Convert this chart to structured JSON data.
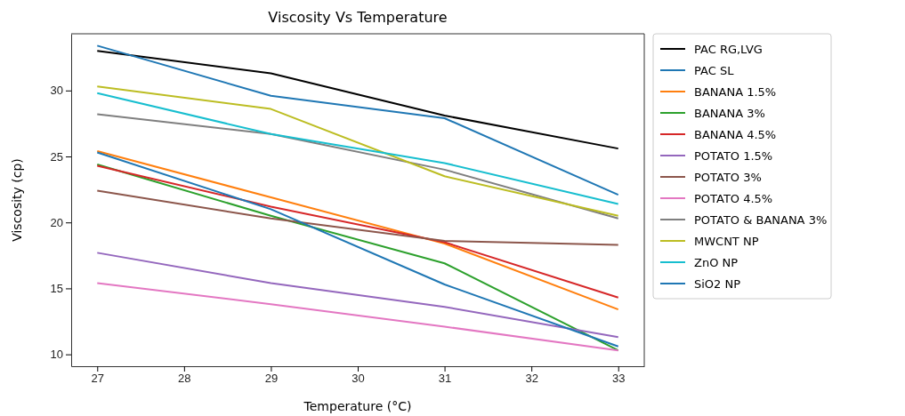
{
  "chart_data": {
    "type": "line",
    "title": "Viscosity Vs Temperature",
    "xlabel": "Temperature (°C)",
    "ylabel": "Viscosity (cp)",
    "x": [
      27,
      29,
      31,
      33
    ],
    "xlim": [
      26.7,
      33.3
    ],
    "xticks": [
      27,
      28,
      29,
      30,
      31,
      32,
      33
    ],
    "ylim": [
      9.1,
      34.3
    ],
    "yticks": [
      10,
      15,
      20,
      25,
      30
    ],
    "grid": false,
    "legend": "top right",
    "line_style": "solid",
    "series": [
      {
        "name": "PAC RG,LVG",
        "color": "#000000",
        "values": [
          33.0,
          31.3,
          28.1,
          25.6
        ]
      },
      {
        "name": "PAC SL",
        "color": "#1f77b4",
        "values": [
          33.4,
          29.6,
          27.9,
          22.1
        ]
      },
      {
        "name": "BANANA 1.5%",
        "color": "#ff7f0e",
        "values": [
          25.4,
          21.9,
          18.4,
          13.4
        ]
      },
      {
        "name": "BANANA 3%",
        "color": "#2ca02c",
        "values": [
          24.4,
          20.5,
          16.9,
          10.3
        ]
      },
      {
        "name": "BANANA 4.5%",
        "color": "#d62728",
        "values": [
          24.3,
          21.2,
          18.5,
          14.3
        ]
      },
      {
        "name": "POTATO 1.5%",
        "color": "#9467bd",
        "values": [
          17.7,
          15.4,
          13.6,
          11.3
        ]
      },
      {
        "name": "POTATO 3%",
        "color": "#8c564b",
        "values": [
          22.4,
          20.3,
          18.6,
          18.3
        ]
      },
      {
        "name": "POTATO 4.5%",
        "color": "#e377c2",
        "values": [
          15.4,
          13.8,
          12.1,
          10.3
        ]
      },
      {
        "name": "POTATO & BANANA 3%",
        "color": "#7f7f7f",
        "values": [
          28.2,
          26.7,
          24.0,
          20.3
        ]
      },
      {
        "name": "MWCNT NP",
        "color": "#bcbd22",
        "values": [
          30.3,
          28.6,
          23.5,
          20.5
        ]
      },
      {
        "name": "ZnO NP",
        "color": "#17becf",
        "values": [
          29.8,
          26.7,
          24.5,
          21.4
        ]
      },
      {
        "name": "SiO2 NP",
        "color": "#1f77b4",
        "values": [
          25.3,
          21.0,
          15.3,
          10.6
        ]
      }
    ]
  }
}
